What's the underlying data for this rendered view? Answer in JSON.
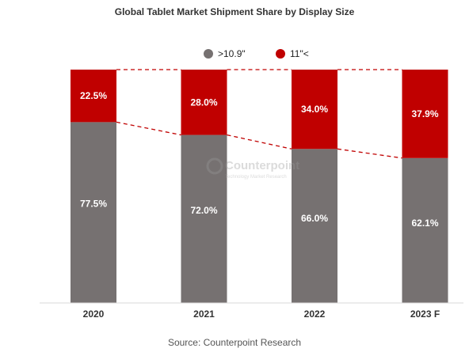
{
  "chart_data": {
    "type": "bar",
    "stacked": true,
    "title": "Global Tablet Market Shipment Share by Display Size",
    "categories": [
      "2020",
      "2021",
      "2022",
      "2023 F"
    ],
    "series": [
      {
        "name": ">10.9\"",
        "values": [
          77.5,
          72.0,
          66.0,
          62.1
        ],
        "labels": [
          "77.5%",
          "72.0%",
          "66.0%",
          "62.1%"
        ],
        "color": "#767171"
      },
      {
        "name": "11\"<",
        "values": [
          22.5,
          28.0,
          34.0,
          37.9
        ],
        "labels": [
          "22.5%",
          "28.0%",
          "34.0%",
          "37.9%"
        ],
        "color": "#c00000"
      }
    ],
    "ylim": [
      0,
      100
    ],
    "legend": "top-center",
    "grid": false,
    "connector_lines": "dashed red lines linking segment boundaries",
    "source": "Source: Counterpoint Research",
    "watermark": {
      "name": "Counterpoint",
      "tagline": "Technology Market Research"
    }
  }
}
